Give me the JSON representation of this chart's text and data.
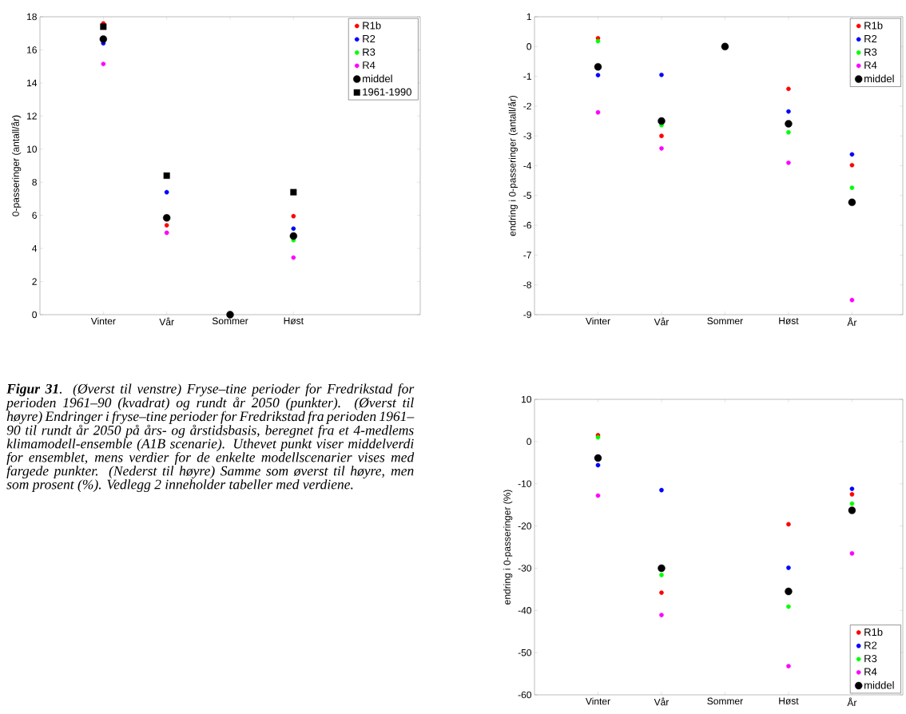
{
  "chart_data": [
    {
      "type": "scatter",
      "ylabel": "0-passeringer (antall/år)",
      "categories": [
        "Vinter",
        "Vår",
        "Sommer",
        "Høst"
      ],
      "ylim": [
        0,
        18
      ],
      "yticks": [
        0,
        2,
        4,
        6,
        8,
        10,
        12,
        14,
        16,
        18
      ],
      "legend": "top right",
      "series": [
        {
          "name": "R1b",
          "color": "#ff0000",
          "marker": "circle",
          "values": [
            17.6,
            5.4,
            null,
            5.95
          ]
        },
        {
          "name": "R2",
          "color": "#0000ff",
          "marker": "circle",
          "values": [
            16.4,
            7.4,
            null,
            5.2
          ]
        },
        {
          "name": "R3",
          "color": "#00ff00",
          "marker": "circle",
          "values": [
            null,
            null,
            null,
            4.5
          ]
        },
        {
          "name": "R4",
          "color": "#ff00ff",
          "marker": "circle",
          "values": [
            15.15,
            4.95,
            null,
            3.45
          ]
        },
        {
          "name": "middel",
          "color": "#000000",
          "marker": "circle",
          "values": [
            16.65,
            5.85,
            0,
            4.75
          ]
        },
        {
          "name": "1961-1990",
          "color": "#000000",
          "marker": "square",
          "values": [
            17.4,
            8.4,
            null,
            7.4
          ]
        }
      ]
    },
    {
      "type": "scatter",
      "ylabel": "endring i 0-passeringer (antall/år)",
      "categories": [
        "Vinter",
        "Vår",
        "Sommer",
        "Høst",
        "År"
      ],
      "ylim": [
        -9,
        1
      ],
      "yticks": [
        -9,
        -8,
        -7,
        -6,
        -5,
        -4,
        -3,
        -2,
        -1,
        0,
        1
      ],
      "legend": "top right",
      "series": [
        {
          "name": "R1b",
          "color": "#ff0000",
          "marker": "circle",
          "values": [
            0.28,
            -3.0,
            null,
            -1.42,
            -3.98
          ]
        },
        {
          "name": "R2",
          "color": "#0000ff",
          "marker": "circle",
          "values": [
            -0.96,
            -0.95,
            null,
            -2.18,
            -3.62
          ]
        },
        {
          "name": "R3",
          "color": "#00ff00",
          "marker": "circle",
          "values": [
            0.18,
            -2.64,
            null,
            -2.88,
            -4.74
          ]
        },
        {
          "name": "R4",
          "color": "#ff00ff",
          "marker": "circle",
          "values": [
            -2.21,
            -3.42,
            null,
            -3.9,
            -8.51
          ]
        },
        {
          "name": "middel",
          "color": "#000000",
          "marker": "circle",
          "values": [
            -0.68,
            -2.5,
            0,
            -2.59,
            -5.23
          ]
        }
      ]
    },
    {
      "type": "scatter",
      "ylabel": "endring i 0-passeringer (%)",
      "categories": [
        "Vinter",
        "Vår",
        "Sommer",
        "Høst",
        "År"
      ],
      "ylim": [
        -60,
        10
      ],
      "yticks": [
        -60,
        -50,
        -40,
        -30,
        -20,
        -10,
        0,
        10
      ],
      "legend": "bottom right",
      "series": [
        {
          "name": "R1b",
          "color": "#ff0000",
          "marker": "circle",
          "values": [
            1.5,
            -35.8,
            null,
            -19.6,
            -12.5
          ]
        },
        {
          "name": "R2",
          "color": "#0000ff",
          "marker": "circle",
          "values": [
            -5.6,
            -11.5,
            null,
            -29.9,
            -11.2
          ]
        },
        {
          "name": "R3",
          "color": "#00ff00",
          "marker": "circle",
          "values": [
            1.0,
            -31.6,
            null,
            -39.1,
            -14.7
          ]
        },
        {
          "name": "R4",
          "color": "#ff00ff",
          "marker": "circle",
          "values": [
            -12.8,
            -41.1,
            null,
            -53.2,
            -26.5
          ]
        },
        {
          "name": "middel",
          "color": "#000000",
          "marker": "circle",
          "values": [
            -3.9,
            -30.0,
            null,
            -35.5,
            -16.3
          ]
        }
      ]
    },
    {
      "type": "other",
      "annotations": [
        "**Figur 31**. (Øverst til venstre) Fryse–tine perioder for Fredrikstad for perioden 1961–90 (kvadrat) og rundt år 2050 (punkter). (Øverst til høyre) Endringer i fryse–tine perioder for Fredrikstad fra perioden 1961–90 til rundt år 2050 på års- og årstidsbasis, beregnet fra et 4-medlems klimamodell-ensemble (A1B scenarie). Uthevet punkt viser middelverdi for ensemblet, mens verdier for de enkelte modellscenarier vises med fargede punkter. (Nederst til høyre) Samme som øverst til høyre, men som prosent (%). Vedlegg 2 inneholder tabeller med verdiene."
      ]
    }
  ]
}
